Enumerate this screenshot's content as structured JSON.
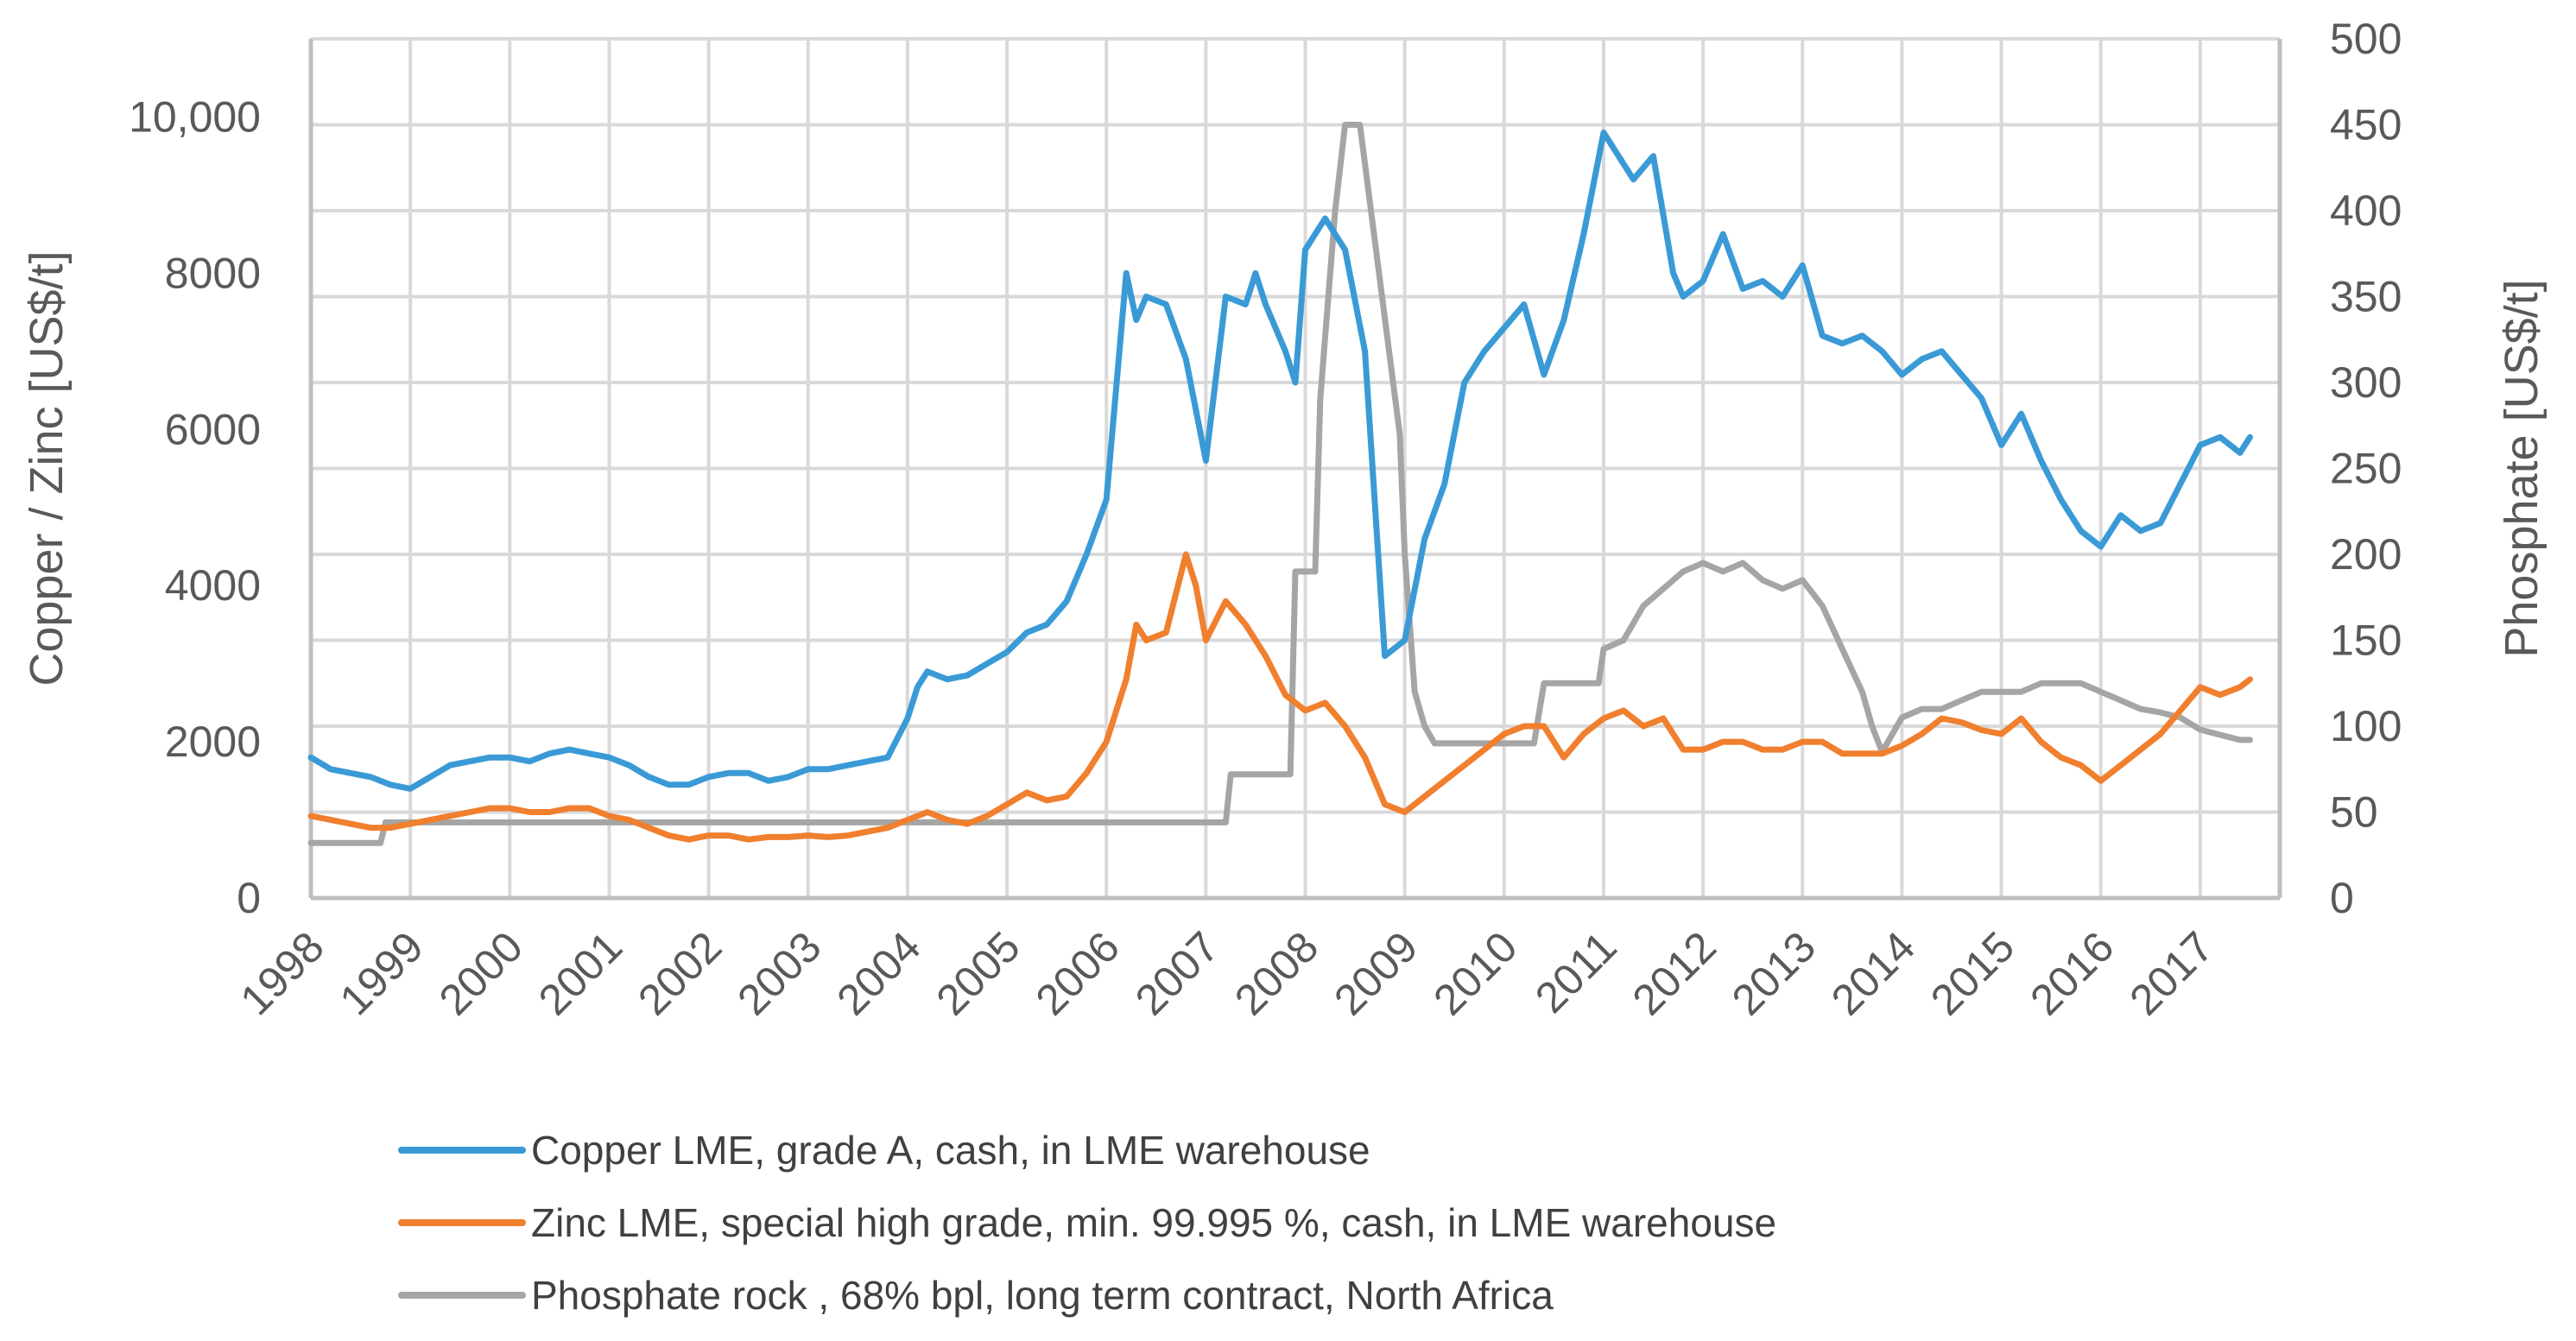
{
  "chart_data": {
    "type": "line",
    "ylabel_left": "Copper /  Zinc [US$/t]",
    "ylabel_right": "Phosphate  [US$/t]",
    "ylim_left": [
      0,
      11000
    ],
    "ylim_right": [
      0,
      500
    ],
    "xlim": [
      1998,
      2017.8
    ],
    "yticks_left": [
      {
        "value": 0,
        "label": "0"
      },
      {
        "value": 2000,
        "label": "2000"
      },
      {
        "value": 4000,
        "label": "4000"
      },
      {
        "value": 6000,
        "label": "6000"
      },
      {
        "value": 8000,
        "label": "8000"
      },
      {
        "value": 10000,
        "label": "10,000"
      }
    ],
    "yticks_right": [
      {
        "value": 0,
        "label": "0"
      },
      {
        "value": 50,
        "label": "50"
      },
      {
        "value": 100,
        "label": "100"
      },
      {
        "value": 150,
        "label": "150"
      },
      {
        "value": 200,
        "label": "200"
      },
      {
        "value": 250,
        "label": "250"
      },
      {
        "value": 300,
        "label": "300"
      },
      {
        "value": 350,
        "label": "350"
      },
      {
        "value": 400,
        "label": "400"
      },
      {
        "value": 450,
        "label": "450"
      },
      {
        "value": 500,
        "label": "500"
      }
    ],
    "xticks": [
      {
        "value": 1998,
        "label": "1998"
      },
      {
        "value": 1999,
        "label": "1999"
      },
      {
        "value": 2000,
        "label": "2000"
      },
      {
        "value": 2001,
        "label": "2001"
      },
      {
        "value": 2002,
        "label": "2002"
      },
      {
        "value": 2003,
        "label": "2003"
      },
      {
        "value": 2004,
        "label": "2004"
      },
      {
        "value": 2005,
        "label": "2005"
      },
      {
        "value": 2006,
        "label": "2006"
      },
      {
        "value": 2007,
        "label": "2007"
      },
      {
        "value": 2008,
        "label": "2008"
      },
      {
        "value": 2009,
        "label": "2009"
      },
      {
        "value": 2010,
        "label": "2010"
      },
      {
        "value": 2011,
        "label": "2011"
      },
      {
        "value": 2012,
        "label": "2012"
      },
      {
        "value": 2013,
        "label": "2013"
      },
      {
        "value": 2014,
        "label": "2014"
      },
      {
        "value": 2015,
        "label": "2015"
      },
      {
        "value": 2016,
        "label": "2016"
      },
      {
        "value": 2017,
        "label": "2017"
      }
    ],
    "grid": true,
    "legend_position": "bottom",
    "series": [
      {
        "name": "Copper LME, grade A, cash, in LME warehouse",
        "color": "#3a9ad6",
        "axis": "left",
        "x": [
          1998.0,
          1998.2,
          1998.4,
          1998.6,
          1998.8,
          1999.0,
          1999.2,
          1999.4,
          1999.6,
          1999.8,
          2000.0,
          2000.2,
          2000.4,
          2000.6,
          2000.8,
          2001.0,
          2001.2,
          2001.4,
          2001.6,
          2001.8,
          2002.0,
          2002.2,
          2002.4,
          2002.6,
          2002.8,
          2003.0,
          2003.2,
          2003.4,
          2003.6,
          2003.8,
          2004.0,
          2004.1,
          2004.2,
          2004.4,
          2004.6,
          2004.8,
          2005.0,
          2005.2,
          2005.4,
          2005.6,
          2005.8,
          2006.0,
          2006.2,
          2006.3,
          2006.4,
          2006.6,
          2006.8,
          2007.0,
          2007.2,
          2007.4,
          2007.5,
          2007.6,
          2007.8,
          2007.9,
          2008.0,
          2008.2,
          2008.4,
          2008.6,
          2008.8,
          2009.0,
          2009.2,
          2009.4,
          2009.6,
          2009.8,
          2010.0,
          2010.2,
          2010.4,
          2010.6,
          2010.8,
          2011.0,
          2011.1,
          2011.3,
          2011.5,
          2011.7,
          2011.8,
          2012.0,
          2012.2,
          2012.4,
          2012.6,
          2012.8,
          2013.0,
          2013.2,
          2013.4,
          2013.6,
          2013.8,
          2014.0,
          2014.2,
          2014.4,
          2014.6,
          2014.8,
          2015.0,
          2015.2,
          2015.4,
          2015.6,
          2015.8,
          2016.0,
          2016.2,
          2016.4,
          2016.6,
          2016.8,
          2017.0,
          2017.2,
          2017.4,
          2017.5
        ],
        "y": [
          1800,
          1650,
          1600,
          1550,
          1450,
          1400,
          1550,
          1700,
          1750,
          1800,
          1800,
          1750,
          1850,
          1900,
          1850,
          1800,
          1700,
          1550,
          1450,
          1450,
          1550,
          1600,
          1600,
          1500,
          1550,
          1650,
          1650,
          1700,
          1750,
          1800,
          2300,
          2700,
          2900,
          2800,
          2850,
          3000,
          3150,
          3400,
          3500,
          3800,
          4400,
          5100,
          8000,
          7400,
          7700,
          7600,
          6900,
          5600,
          7700,
          7600,
          8000,
          7600,
          7000,
          6600,
          8300,
          8700,
          8300,
          7000,
          3100,
          3300,
          4600,
          5300,
          6600,
          7000,
          7300,
          7600,
          6700,
          7400,
          8500,
          9800,
          9600,
          9200,
          9500,
          8000,
          7700,
          7900,
          8500,
          7800,
          7900,
          7700,
          8100,
          7200,
          7100,
          7200,
          7000,
          6700,
          6900,
          7000,
          6700,
          6400,
          5800,
          6200,
          5600,
          5100,
          4700,
          4500,
          4900,
          4700,
          4800,
          5300,
          5800,
          5900,
          5700,
          5900
        ]
      },
      {
        "name": "Zinc LME, special high grade, min. 99.995 %, cash, in LME warehouse",
        "color": "#f07f2e",
        "axis": "left",
        "x": [
          1998.0,
          1998.2,
          1998.4,
          1998.6,
          1998.8,
          1999.0,
          1999.2,
          1999.4,
          1999.6,
          1999.8,
          2000.0,
          2000.2,
          2000.4,
          2000.6,
          2000.8,
          2001.0,
          2001.2,
          2001.4,
          2001.6,
          2001.8,
          2002.0,
          2002.2,
          2002.4,
          2002.6,
          2002.8,
          2003.0,
          2003.2,
          2003.4,
          2003.6,
          2003.8,
          2004.0,
          2004.2,
          2004.4,
          2004.6,
          2004.8,
          2005.0,
          2005.2,
          2005.4,
          2005.6,
          2005.8,
          2006.0,
          2006.2,
          2006.3,
          2006.4,
          2006.6,
          2006.8,
          2006.9,
          2007.0,
          2007.2,
          2007.4,
          2007.6,
          2007.8,
          2008.0,
          2008.2,
          2008.4,
          2008.6,
          2008.8,
          2009.0,
          2009.2,
          2009.4,
          2009.6,
          2009.8,
          2010.0,
          2010.2,
          2010.4,
          2010.6,
          2010.8,
          2011.0,
          2011.2,
          2011.4,
          2011.6,
          2011.8,
          2012.0,
          2012.2,
          2012.4,
          2012.6,
          2012.8,
          2013.0,
          2013.2,
          2013.4,
          2013.6,
          2013.8,
          2014.0,
          2014.2,
          2014.4,
          2014.6,
          2014.8,
          2015.0,
          2015.2,
          2015.4,
          2015.6,
          2015.8,
          2016.0,
          2016.2,
          2016.4,
          2016.6,
          2016.8,
          2017.0,
          2017.2,
          2017.4,
          2017.5
        ],
        "y": [
          1050,
          1000,
          950,
          900,
          900,
          950,
          1000,
          1050,
          1100,
          1150,
          1150,
          1100,
          1100,
          1150,
          1150,
          1050,
          1000,
          900,
          800,
          750,
          800,
          800,
          750,
          780,
          780,
          800,
          780,
          800,
          850,
          900,
          1000,
          1100,
          1000,
          950,
          1050,
          1200,
          1350,
          1250,
          1300,
          1600,
          2000,
          2800,
          3500,
          3300,
          3400,
          4400,
          4000,
          3300,
          3800,
          3500,
          3100,
          2600,
          2400,
          2500,
          2200,
          1800,
          1200,
          1100,
          1300,
          1500,
          1700,
          1900,
          2100,
          2200,
          2200,
          1800,
          2100,
          2300,
          2400,
          2200,
          2300,
          1900,
          1900,
          2000,
          2000,
          1900,
          1900,
          2000,
          2000,
          1850,
          1850,
          1850,
          1950,
          2100,
          2300,
          2250,
          2150,
          2100,
          2300,
          2000,
          1800,
          1700,
          1500,
          1700,
          1900,
          2100,
          2400,
          2700,
          2600,
          2700,
          2800
        ]
      },
      {
        "name": "Phosphate rock , 68% bpl, long term contract, North Africa",
        "color": "#a5a5a5",
        "axis": "right",
        "x": [
          1998.0,
          1998.7,
          1998.75,
          2007.2,
          2007.25,
          2007.85,
          2007.9,
          2008.1,
          2008.15,
          2008.3,
          2008.4,
          2008.55,
          2008.95,
          2009.0,
          2009.1,
          2009.2,
          2009.3,
          2010.3,
          2010.4,
          2010.95,
          2011.0,
          2011.2,
          2011.4,
          2011.6,
          2011.8,
          2012.0,
          2012.2,
          2012.4,
          2012.6,
          2012.8,
          2013.0,
          2013.2,
          2013.4,
          2013.6,
          2013.7,
          2013.8,
          2014.0,
          2014.2,
          2014.4,
          2014.6,
          2014.8,
          2015.0,
          2015.2,
          2015.4,
          2015.6,
          2015.8,
          2016.0,
          2016.2,
          2016.4,
          2016.6,
          2016.8,
          2017.0,
          2017.2,
          2017.4,
          2017.5
        ],
        "y": [
          32,
          32,
          44,
          44,
          72,
          72,
          190,
          190,
          290,
          400,
          450,
          450,
          270,
          200,
          120,
          100,
          90,
          90,
          125,
          125,
          145,
          150,
          170,
          180,
          190,
          195,
          190,
          195,
          185,
          180,
          185,
          170,
          145,
          120,
          100,
          85,
          105,
          110,
          110,
          115,
          120,
          120,
          120,
          125,
          125,
          125,
          120,
          115,
          110,
          108,
          105,
          98,
          95,
          92,
          92
        ]
      }
    ]
  }
}
